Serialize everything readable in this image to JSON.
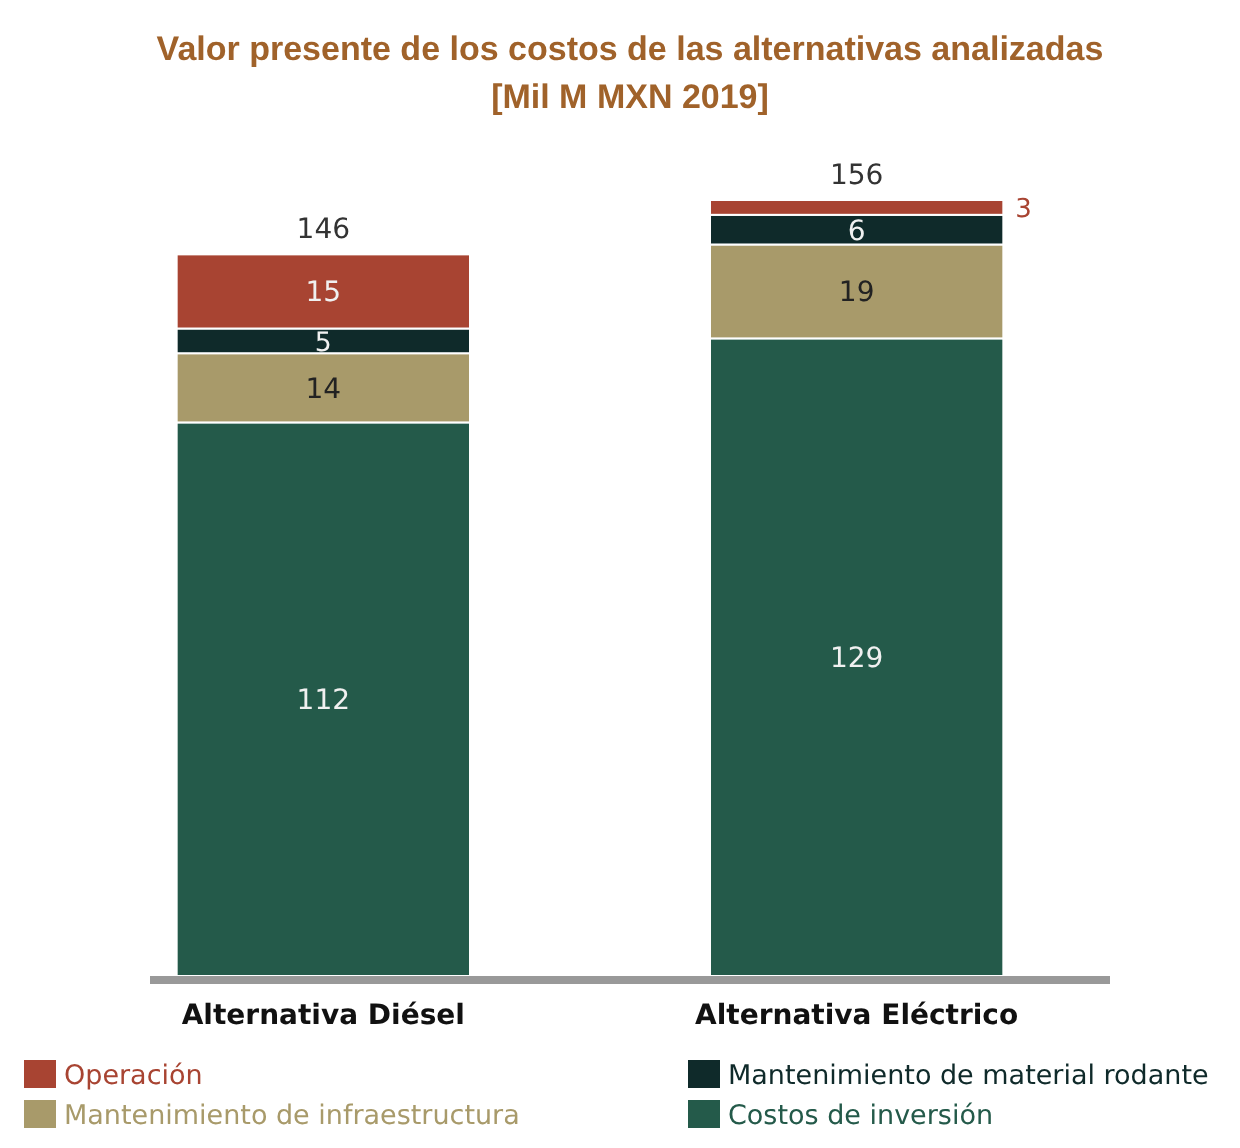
{
  "chart_data": {
    "type": "bar",
    "title": "Valor presente de los costos de las alternativas analizadas",
    "subtitle": "[Mil M MXN 2019]",
    "categories": [
      "Alternativa Diésel",
      "Alternativa Eléctrico"
    ],
    "stacked": true,
    "data_labels": true,
    "totals": [
      "146",
      "156"
    ],
    "legend": "bottom",
    "series": [
      {
        "name": "Costos de inversión",
        "color": "#245a4a",
        "values": [
          112,
          129
        ]
      },
      {
        "name": "Mantenimiento de infraestructura",
        "color": "#a89a6a",
        "values": [
          14,
          19
        ]
      },
      {
        "name": "Mantenimiento de material rodante",
        "color": "#0f2a2a",
        "values": [
          5,
          6
        ]
      },
      {
        "name": "Operación",
        "color": "#a84432",
        "values": [
          15,
          3
        ]
      }
    ]
  }
}
